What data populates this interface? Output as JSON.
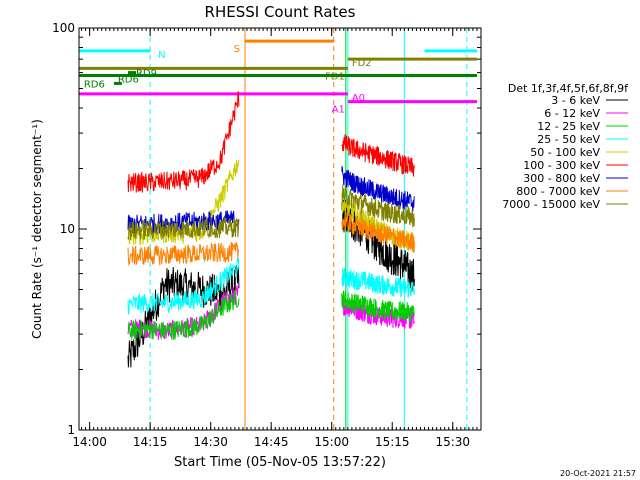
{
  "chart_data": {
    "type": "line",
    "title": "RHESSI Count Rates",
    "xlabel": "Start Time (05-Nov-05 13:57:22)",
    "ylabel": "Count Rate (s⁻¹ detector segment⁻¹)",
    "yscale": "log",
    "ylim": [
      1,
      100
    ],
    "xlim": [
      "13:57:22",
      "15:37:00"
    ],
    "x_ticks": [
      "14:00",
      "14:15",
      "14:30",
      "14:45",
      "15:00",
      "15:15",
      "15:30"
    ],
    "y_ticks": [
      "1",
      "10",
      "100"
    ],
    "grid": false,
    "legend_position": "right",
    "legend_title": "Det 1f,3f,4f,5f,6f,8f,9f",
    "series": [
      {
        "name": "3 - 6 keV",
        "color": "#000000",
        "seg1": {
          "start": "14:09:30",
          "end": "14:37:00",
          "values": [
            2.2,
            3.3,
            5.3,
            5.2,
            5.0,
            4.8,
            5.5
          ]
        },
        "seg2": {
          "start": "15:02:30",
          "end": "15:20:30",
          "values": [
            12.0,
            10.5,
            9.5,
            8.2,
            7.3,
            6.7,
            5.8
          ]
        }
      },
      {
        "name": "6 - 12 keV",
        "color": "#ff00ff",
        "seg1": {
          "start": "14:09:30",
          "end": "14:37:00",
          "values": [
            3.2,
            3.2,
            3.1,
            3.2,
            3.3,
            4.2,
            4.8
          ]
        },
        "seg2": {
          "start": "15:02:30",
          "end": "15:20:30",
          "values": [
            4.2,
            4.0,
            3.8,
            3.7,
            3.6,
            3.6,
            3.5
          ]
        }
      },
      {
        "name": "12 - 25 keV",
        "color": "#00cc00",
        "seg1": {
          "start": "14:09:30",
          "end": "14:37:00",
          "values": [
            3.1,
            3.2,
            3.1,
            3.2,
            3.3,
            4.0,
            4.6
          ]
        },
        "seg2": {
          "start": "15:02:30",
          "end": "15:20:30",
          "values": [
            4.5,
            4.3,
            4.2,
            4.0,
            3.9,
            3.9,
            3.8
          ]
        }
      },
      {
        "name": "25 - 50 keV",
        "color": "#00ffff",
        "seg1": {
          "start": "14:09:30",
          "end": "14:37:00",
          "values": [
            4.2,
            4.3,
            4.3,
            4.4,
            4.5,
            5.5,
            6.5
          ]
        },
        "seg2": {
          "start": "15:02:30",
          "end": "15:20:30",
          "values": [
            5.8,
            5.6,
            5.5,
            5.3,
            5.2,
            5.1,
            5.0
          ]
        }
      },
      {
        "name": "50 - 100 keV",
        "color": "#cccc00",
        "seg1": {
          "start": "14:09:30",
          "end": "14:37:00",
          "values": [
            9.2,
            9.4,
            9.5,
            9.5,
            9.7,
            14.0,
            22.0
          ]
        },
        "seg2": {
          "start": "15:02:30",
          "end": "15:20:30",
          "values": [
            13.5,
            12.0,
            11.0,
            10.0,
            9.4,
            8.9,
            8.6
          ]
        }
      },
      {
        "name": "100 - 300 keV",
        "color": "#ff0000",
        "seg1": {
          "start": "14:09:30",
          "end": "14:37:00",
          "values": [
            17.0,
            17.0,
            17.2,
            17.4,
            18.0,
            22.0,
            45.0
          ]
        },
        "seg2": {
          "start": "15:02:30",
          "end": "15:20:30",
          "values": [
            27.0,
            25.0,
            24.0,
            23.0,
            22.0,
            21.0,
            20.0
          ]
        }
      },
      {
        "name": "300 - 800 keV",
        "color": "#0000cc",
        "seg1": {
          "start": "14:09:30",
          "end": "14:37:00",
          "values": [
            10.5,
            10.6,
            10.7,
            10.8,
            10.9,
            11.0,
            11.2
          ]
        },
        "seg2": {
          "start": "15:02:30",
          "end": "15:20:30",
          "values": [
            18.5,
            17.0,
            16.0,
            15.2,
            14.5,
            14.0,
            13.5
          ]
        }
      },
      {
        "name": "800 - 7000 keV",
        "color": "#ff8000",
        "seg1": {
          "start": "14:09:30",
          "end": "14:37:00",
          "values": [
            7.3,
            7.4,
            7.4,
            7.5,
            7.5,
            7.6,
            7.7
          ]
        },
        "seg2": {
          "start": "15:02:30",
          "end": "15:20:30",
          "values": [
            11.0,
            10.4,
            10.0,
            9.5,
            9.2,
            8.8,
            8.5
          ]
        }
      },
      {
        "name": "7000 - 15000 keV",
        "color": "#808000",
        "seg1": {
          "start": "14:09:30",
          "end": "14:37:00",
          "values": [
            9.8,
            9.9,
            10.0,
            10.0,
            10.1,
            10.1,
            10.2
          ]
        },
        "seg2": {
          "start": "15:02:30",
          "end": "15:20:30",
          "values": [
            15.0,
            14.0,
            13.2,
            12.5,
            12.0,
            11.7,
            11.4
          ]
        }
      }
    ],
    "state_bars": [
      {
        "label": "N",
        "color": "#00ffff",
        "y": 77,
        "segments": [
          [
            "13:57:22",
            "14:15:00"
          ],
          [
            "15:23:00",
            "15:36:00"
          ]
        ],
        "label_time": "14:16:00",
        "label_side": "right"
      },
      {
        "label": "S",
        "color": "#ff8000",
        "y": 86,
        "segments": [
          [
            "14:38:30",
            "15:00:30"
          ]
        ],
        "label_time": "14:38:00",
        "label_side": "left"
      },
      {
        "label": "FD1",
        "color": "#808000",
        "y": 63,
        "segments": [
          [
            "13:57:22",
            "15:04:00"
          ]
        ],
        "label_time": "15:04:00",
        "label_side": "left"
      },
      {
        "label": "FD2",
        "color": "#808000",
        "y": 70,
        "segments": [
          [
            "15:04:00",
            "15:36:00"
          ]
        ],
        "label_time": "15:04:00",
        "label_side": "right"
      },
      {
        "label": "RD6",
        "color": "#008000",
        "y": 58,
        "segments": [
          [
            "13:57:22",
            "15:36:00"
          ]
        ],
        "label_time": "14:06:00",
        "label_side": "right"
      },
      {
        "label": "A0",
        "color": "#ff00ff",
        "y": 47,
        "segments": [
          [
            "13:57:22",
            "15:04:00"
          ]
        ],
        "label_time": "15:04:00",
        "label_side": "right"
      },
      {
        "label": "A1",
        "color": "#ff00ff",
        "y": 43,
        "segments": [
          [
            "15:04:00",
            "15:36:00"
          ]
        ],
        "label_time": "15:04:00",
        "label_side": "left"
      }
    ],
    "small_markers": [
      {
        "label": "RD6",
        "color": "#008000",
        "time": "14:07:00",
        "y": 53
      },
      {
        "label": "RD9",
        "color": "#008000",
        "time": "14:10:30",
        "y": 60
      }
    ],
    "vertical_lines": [
      {
        "time": "13:57:22",
        "color": "#00ffff",
        "style": "solid"
      },
      {
        "time": "14:15:00",
        "color": "#00ffff",
        "style": "dashed"
      },
      {
        "time": "14:38:30",
        "color": "#ff8000",
        "style": "solid"
      },
      {
        "time": "15:00:30",
        "color": "#ff8000",
        "style": "dashed"
      },
      {
        "time": "15:04:00",
        "color": "#00ffff",
        "style": "solid"
      },
      {
        "time": "15:18:00",
        "color": "#00ffff",
        "style": "solid"
      },
      {
        "time": "15:33:30",
        "color": "#00ffff",
        "style": "dashed"
      },
      {
        "time": "15:03:30",
        "color": "#00cc00",
        "style": "solid"
      }
    ]
  },
  "footer": {
    "timestamp": "20-Oct-2021 21:57"
  }
}
